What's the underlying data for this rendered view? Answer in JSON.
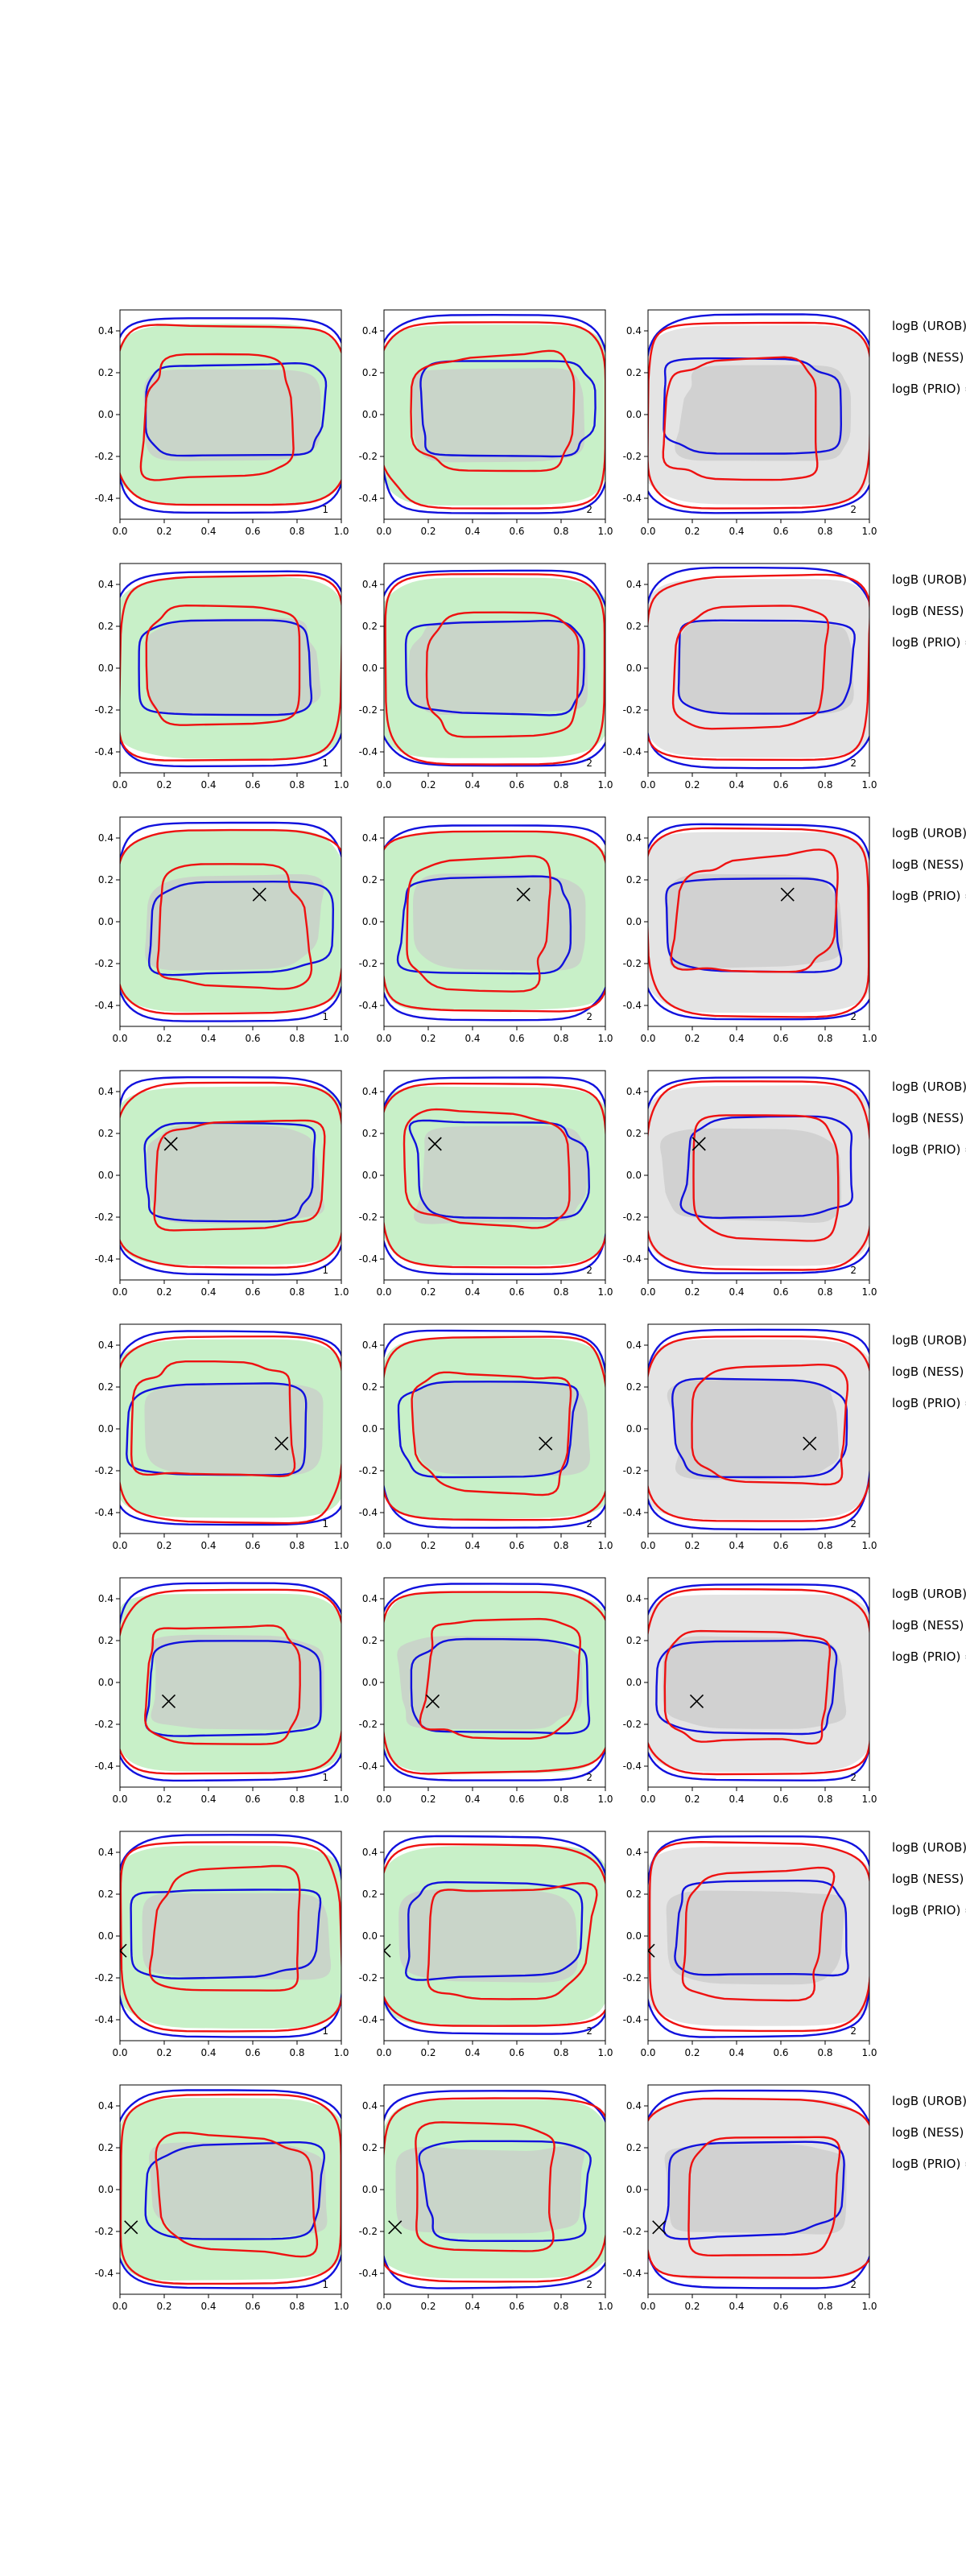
{
  "figure": {
    "colors": {
      "green_fill": "#c8f0c8",
      "gray_fill": "#e4e4e4",
      "inner_gray": "#c9c9c9",
      "red": "#ee1111",
      "blue": "#1111dd",
      "marker": "#000000"
    }
  },
  "chart_data": {
    "type": "contour-grid",
    "rows": 8,
    "cols": 3,
    "xlim": [
      0.0,
      1.0
    ],
    "ylim": [
      -0.5,
      0.5
    ],
    "xticks": [
      "0.0",
      "0.2",
      "0.4",
      "0.6",
      "0.8",
      "1.0"
    ],
    "yticks": [
      "0.4",
      "0.2",
      "0.0",
      "-0.2",
      "-0.4"
    ],
    "panel_numbers": [
      "1",
      "2",
      "2"
    ],
    "annotations": [
      "logB (UROB) =",
      "logB (NESS) =",
      "logB (PRIO) ="
    ],
    "markers": [
      null,
      null,
      [
        0.63,
        0.13
      ],
      [
        0.23,
        0.15
      ],
      [
        0.73,
        -0.07
      ],
      [
        0.22,
        -0.09
      ],
      [
        0.0,
        -0.07
      ],
      [
        0.05,
        -0.18
      ]
    ],
    "series": [
      {
        "name": "red contours"
      },
      {
        "name": "blue contours"
      },
      {
        "name": "green density region"
      },
      {
        "name": "gray density region"
      }
    ]
  }
}
